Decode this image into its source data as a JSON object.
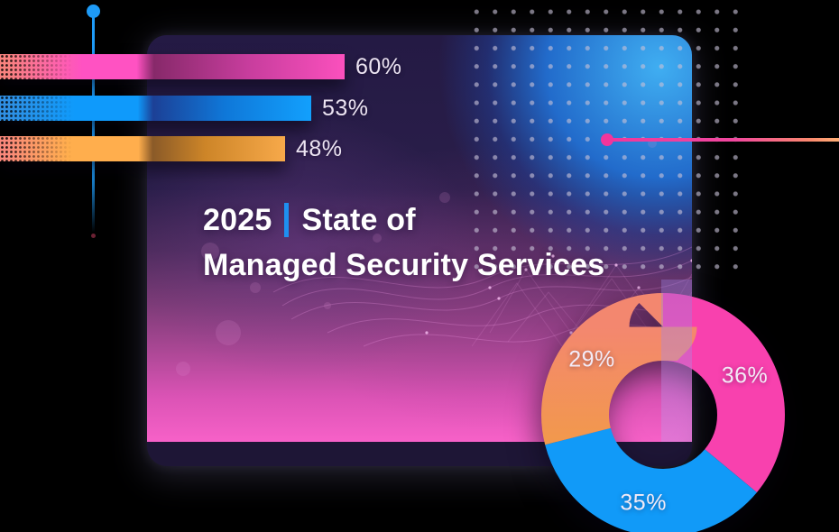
{
  "title": {
    "year": "2025",
    "separator": "|",
    "heading_rest": "State of",
    "heading_line2": "Managed Security Services"
  },
  "chart_data": [
    {
      "type": "bar",
      "orientation": "horizontal",
      "title": "",
      "xlabel": "",
      "ylabel": "",
      "axis_visible": false,
      "grid": false,
      "legend": "none",
      "value_suffix": "%",
      "series": [
        {
          "label": "60%",
          "value": 60,
          "color_bright": "#ff52c2",
          "color_intro": "#f9827e",
          "color_dark": "#87296a",
          "color_mid": "#c73d9d",
          "color_end": "#fb50bd"
        },
        {
          "label": "53%",
          "value": 53,
          "color_bright": "#0f9afb",
          "color_intro": "#2f8fe3",
          "color_dark": "#1c4096",
          "color_mid": "#0f77d8",
          "color_end": "#12a0fd"
        },
        {
          "label": "48%",
          "value": 48,
          "color_bright": "#ffae4d",
          "color_intro": "#f9887b",
          "color_dark": "#8a5a28",
          "color_mid": "#cd8528",
          "color_end": "#f7a94a"
        }
      ]
    },
    {
      "type": "pie",
      "donut": true,
      "title": "",
      "legend": "none",
      "start_angle_deg": 0,
      "direction": "clockwise",
      "value_suffix": "%",
      "segments": [
        {
          "label": "36%",
          "value": 36,
          "color": "#f841ae",
          "color2": "#f841ae"
        },
        {
          "label": "35%",
          "value": 35,
          "color": "#119af8",
          "color2": "#119af8"
        },
        {
          "label": "29%",
          "value": 29,
          "color": "#f2a23a",
          "color2": "#f3876f"
        }
      ]
    }
  ],
  "decorations": {
    "accent_blue_line": "#1e9bf7",
    "accent_pink_line": "#f2359c",
    "pink_line_tip": "#ffb077",
    "tail_dot_maroon": "#6b2133",
    "divider_blue": "#1e90f0",
    "dot_grid_color": "#c6c0d6",
    "card_top_glow": "#41b6fb",
    "card_bottom_glow": "#f761c8",
    "card_base": "#241a44"
  }
}
